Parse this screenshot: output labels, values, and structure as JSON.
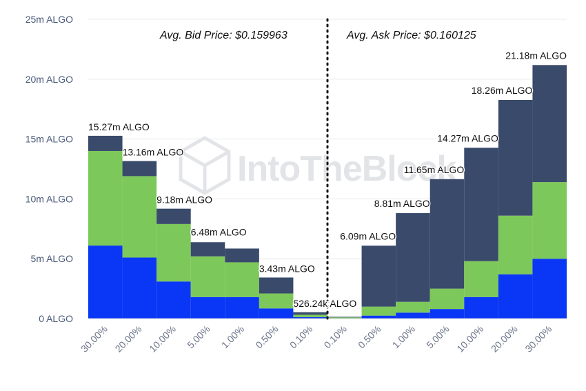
{
  "chart_data": {
    "type": "bar",
    "stacked": true,
    "categories": [
      "30.00%",
      "20.00%",
      "10.00%",
      "5.00%",
      "1.00%",
      "0.50%",
      "0.10%",
      "0.10%",
      "0.50%",
      "1.00%",
      "5.00%",
      "10.00%",
      "20.00%",
      "30.00%"
    ],
    "sides": [
      "bid",
      "bid",
      "bid",
      "bid",
      "bid",
      "bid",
      "bid",
      "ask",
      "ask",
      "ask",
      "ask",
      "ask",
      "ask",
      "ask"
    ],
    "series": [
      {
        "name": "blue",
        "color": "#0a37f5",
        "values": [
          6.1,
          5.1,
          3.1,
          1.8,
          1.8,
          0.85,
          0.12,
          0.03,
          0.25,
          0.5,
          0.8,
          1.8,
          3.7,
          5.0
        ]
      },
      {
        "name": "green",
        "color": "#7dc85a",
        "values": [
          7.9,
          6.8,
          4.8,
          3.4,
          2.9,
          1.25,
          0.2,
          0.07,
          0.75,
          0.9,
          1.7,
          3.0,
          4.9,
          6.4
        ]
      },
      {
        "name": "navy",
        "color": "#394a6b",
        "values": [
          1.27,
          1.26,
          1.28,
          1.18,
          1.15,
          1.33,
          0.21,
          0.05,
          5.09,
          7.41,
          9.15,
          9.47,
          9.66,
          9.78
        ]
      }
    ],
    "totals": [
      15.27,
      13.16,
      9.18,
      6.48,
      5.85,
      3.43,
      0.526,
      0.15,
      6.09,
      8.81,
      11.65,
      14.27,
      18.26,
      21.18
    ],
    "data_labels": [
      "15.27m ALGO",
      "13.16m ALGO",
      "9.18m ALGO",
      "6.48m ALGO",
      "",
      "3.43m ALGO",
      "526.24k ALGO",
      "",
      "6.09m ALGO",
      "8.81m ALGO",
      "11.65m ALGO",
      "14.27m ALGO",
      "18.26m ALGO",
      "21.18m ALGO"
    ],
    "ylim": [
      0,
      25
    ],
    "yticks": [
      {
        "value": 0,
        "label": "0 ALGO"
      },
      {
        "value": 5,
        "label": "5m ALGO"
      },
      {
        "value": 10,
        "label": "10m ALGO"
      },
      {
        "value": 15,
        "label": "15m ALGO"
      },
      {
        "value": 20,
        "label": "20m ALGO"
      },
      {
        "value": 25,
        "label": "25m ALGO"
      }
    ],
    "annotations": {
      "bid": "Avg. Bid Price: $0.159963",
      "ask": "Avg. Ask Price: $0.160125"
    },
    "grid": true
  },
  "watermark": "IntoTheBlock"
}
